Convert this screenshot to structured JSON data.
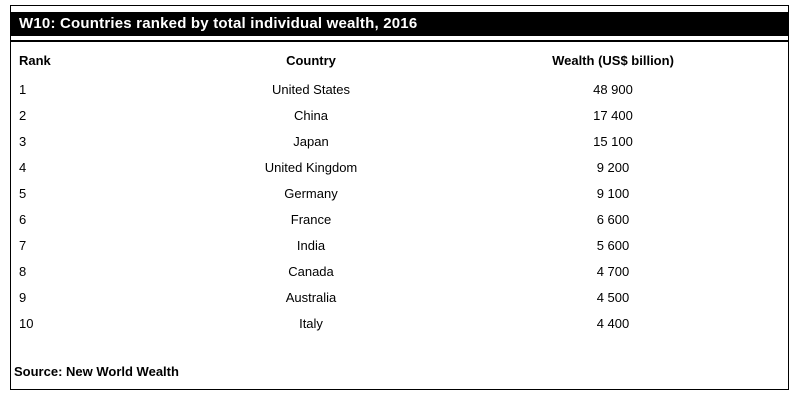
{
  "title_bar": {
    "text": "W10: Countries ranked by total individual wealth, 2016"
  },
  "table": {
    "columns": [
      "Rank",
      "Country",
      "Wealth (US$ billion)"
    ],
    "rows": [
      {
        "rank": "1",
        "country": "United States",
        "wealth": "48 900"
      },
      {
        "rank": "2",
        "country": "China",
        "wealth": "17 400"
      },
      {
        "rank": "3",
        "country": "Japan",
        "wealth": "15 100"
      },
      {
        "rank": "4",
        "country": "United Kingdom",
        "wealth": "9 200"
      },
      {
        "rank": "5",
        "country": "Germany",
        "wealth": "9 100"
      },
      {
        "rank": "6",
        "country": "France",
        "wealth": "6 600"
      },
      {
        "rank": "7",
        "country": "India",
        "wealth": "5 600"
      },
      {
        "rank": "8",
        "country": "Canada",
        "wealth": "4 700"
      },
      {
        "rank": "9",
        "country": "Australia",
        "wealth": "4 500"
      },
      {
        "rank": "10",
        "country": "Italy",
        "wealth": "4 400"
      }
    ]
  },
  "footer": {
    "source": "Source: New World Wealth"
  },
  "colors": {
    "title_background": "#000000",
    "title_text": "#ffffff",
    "border": "#000000",
    "body_text": "#000000",
    "page_background": "#ffffff"
  },
  "chart_data": {
    "type": "table",
    "title": "W10: Countries ranked by total individual wealth, 2016",
    "columns": [
      "Rank",
      "Country",
      "Wealth (US$ billion)"
    ],
    "rows": [
      [
        1,
        "United States",
        48900
      ],
      [
        2,
        "China",
        17400
      ],
      [
        3,
        "Japan",
        15100
      ],
      [
        4,
        "United Kingdom",
        9200
      ],
      [
        5,
        "Germany",
        9100
      ],
      [
        6,
        "France",
        6600
      ],
      [
        7,
        "India",
        5600
      ],
      [
        8,
        "Canada",
        4700
      ],
      [
        9,
        "Australia",
        4500
      ],
      [
        10,
        "Italy",
        4400
      ]
    ],
    "source": "Source: New World Wealth",
    "layout": {
      "rank_align": "left",
      "country_align": "center",
      "wealth_align": "center",
      "header_style": "bold, no gridlines",
      "title_style": "white bold text on black band"
    }
  }
}
